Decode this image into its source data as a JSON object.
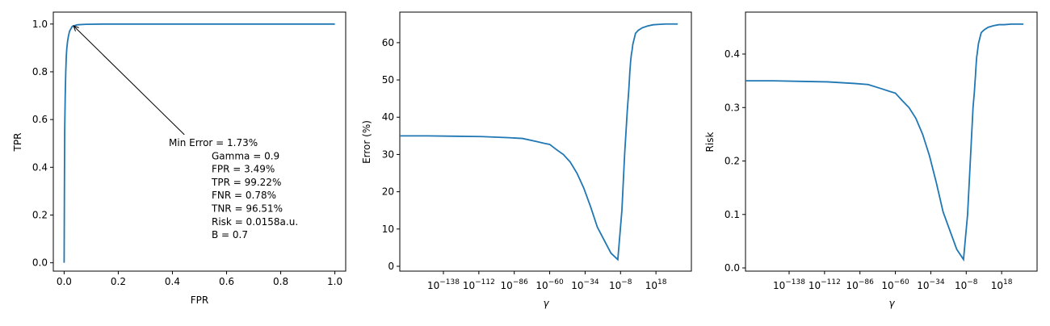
{
  "chart_data": [
    {
      "type": "line",
      "xlabel": "FPR",
      "ylabel": "TPR",
      "xlim": [
        -0.04,
        1.04
      ],
      "ylim": [
        -0.035,
        1.05
      ],
      "xticks": [
        0.0,
        0.2,
        0.4,
        0.6,
        0.8,
        1.0
      ],
      "yticks": [
        0.0,
        0.2,
        0.4,
        0.6,
        0.8,
        1.0
      ],
      "tick_labels_x": [
        "0.0",
        "0.2",
        "0.4",
        "0.6",
        "0.8",
        "1.0"
      ],
      "tick_labels_y": [
        "0.0",
        "0.2",
        "0.4",
        "0.6",
        "0.8",
        "1.0"
      ],
      "color": "#1f77b4",
      "series": [
        {
          "x": [
            0.0,
            0.001,
            0.002,
            0.004,
            0.006,
            0.008,
            0.01,
            0.013,
            0.016,
            0.02,
            0.025,
            0.03,
            0.0349,
            0.05,
            0.08,
            0.15,
            0.3,
            0.5,
            0.7,
            0.9,
            1.0
          ],
          "y": [
            0.0,
            0.3,
            0.55,
            0.7,
            0.8,
            0.865,
            0.9,
            0.93,
            0.95,
            0.97,
            0.98,
            0.99,
            0.9922,
            0.997,
            0.999,
            1.0,
            1.0,
            1.0,
            1.0,
            1.0,
            1.0
          ]
        }
      ],
      "annotation": {
        "lines": [
          "Min Error = 1.73%",
          "Gamma = 0.9",
          "FPR = 3.49%",
          "TPR = 99.22%",
          "FNR = 0.78%",
          "TNR = 96.51%",
          "Risk = 0.0158a.u.",
          "B = 0.7"
        ],
        "point": [
          0.0349,
          0.9922
        ],
        "text_xy": [
          0.45,
          0.53
        ]
      }
    },
    {
      "type": "line",
      "xscale": "log",
      "xlabel": "γ",
      "ylabel": "Error (%)",
      "xlim_exp": [
        -170,
        44
      ],
      "ylim": [
        -1.3,
        68.2
      ],
      "xticks_exp": [
        -138,
        -112,
        -86,
        -60,
        -34,
        -8,
        18
      ],
      "tick_labels_x": [
        "10−138",
        "10−112",
        "10−86",
        "10−60",
        "10−34",
        "10−8",
        "1018"
      ],
      "yticks": [
        0,
        10,
        20,
        30,
        40,
        50,
        60
      ],
      "tick_labels_y": [
        "0",
        "10",
        "20",
        "30",
        "40",
        "50",
        "60"
      ],
      "color": "#1f77b4",
      "series": [
        {
          "x_exp": [
            -170,
            -150,
            -130,
            -110,
            -90,
            -80,
            -70,
            -64,
            -60,
            -55,
            -50,
            -45,
            -40,
            -35,
            -30,
            -25,
            -20,
            -15,
            -10,
            -7,
            -5,
            -3,
            -2,
            -1.5,
            -1.2,
            -1,
            -0.6,
            -0.3,
            0,
            0.5,
            1,
            2,
            3,
            5,
            8,
            12,
            16,
            20,
            25,
            30,
            34
          ],
          "y": [
            35,
            35,
            34.9,
            34.8,
            34.5,
            34.3,
            33.5,
            33,
            32.7,
            31.3,
            30,
            28,
            25,
            21,
            16,
            10.5,
            7,
            3.5,
            1.8,
            15,
            30,
            42,
            47,
            50,
            52,
            53,
            55,
            56,
            57,
            58,
            59.5,
            61,
            62.5,
            63.3,
            64,
            64.5,
            64.8,
            64.9,
            65,
            65,
            65
          ]
        }
      ]
    },
    {
      "type": "line",
      "xscale": "log",
      "xlabel": "γ",
      "ylabel": "Risk",
      "xlim_exp": [
        -170,
        44
      ],
      "ylim": [
        -0.006,
        0.4785
      ],
      "xticks_exp": [
        -138,
        -112,
        -86,
        -60,
        -34,
        -8,
        18
      ],
      "tick_labels_x": [
        "10−138",
        "10−112",
        "10−86",
        "10−60",
        "10−34",
        "10−8",
        "1018"
      ],
      "yticks": [
        0.0,
        0.1,
        0.2,
        0.3,
        0.4
      ],
      "tick_labels_y": [
        "0.0",
        "0.1",
        "0.2",
        "0.3",
        "0.4"
      ],
      "color": "#1f77b4",
      "series": [
        {
          "x_exp": [
            -170,
            -150,
            -130,
            -110,
            -90,
            -80,
            -70,
            -64,
            -60,
            -55,
            -50,
            -45,
            -40,
            -35,
            -30,
            -25,
            -20,
            -15,
            -10,
            -7,
            -5,
            -3,
            -2,
            -1.5,
            -1.2,
            -1,
            -0.6,
            -0.3,
            0,
            0.5,
            1,
            2,
            3,
            5,
            8,
            12,
            16,
            20,
            25,
            30,
            34
          ],
          "y": [
            0.35,
            0.35,
            0.349,
            0.348,
            0.345,
            0.343,
            0.335,
            0.33,
            0.327,
            0.313,
            0.3,
            0.28,
            0.25,
            0.21,
            0.16,
            0.105,
            0.07,
            0.035,
            0.0158,
            0.1,
            0.2,
            0.3,
            0.33,
            0.35,
            0.36,
            0.37,
            0.385,
            0.395,
            0.4,
            0.41,
            0.42,
            0.43,
            0.44,
            0.445,
            0.45,
            0.453,
            0.455,
            0.455,
            0.456,
            0.456,
            0.456
          ]
        }
      ]
    }
  ]
}
